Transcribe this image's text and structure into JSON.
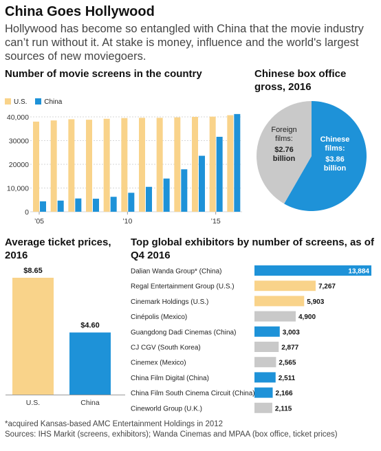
{
  "header": {
    "title": "China Goes Hollywood",
    "subtitle": "Hollywood has become so entangled with China that the movie industry can’t run without it. At stake is money, influence and the world's largest sources of new moviegoers."
  },
  "colors": {
    "us": "#F9D38A",
    "china": "#1E92D8",
    "gray": "#C9C9C9",
    "highlight_china": "#1E92D8"
  },
  "footnote": {
    "note": "*acquired Kansas-based AMC Entertainment Holdings in 2012",
    "sources": "Sources: IHS Markit (screens, exhibitors); Wanda Cinemas and MPAA (box office, ticket prices)"
  },
  "chart_data": [
    {
      "type": "bar",
      "title": "Number of movie screens in the country",
      "legend": [
        "U.S.",
        "China"
      ],
      "categories": [
        2005,
        2006,
        2007,
        2008,
        2009,
        2010,
        2011,
        2012,
        2013,
        2014,
        2015,
        2016
      ],
      "x_tick_labels": [
        "’05",
        "’10",
        "’15"
      ],
      "y_tick_labels": [
        "0",
        "10,000",
        "20000",
        "30000",
        "40,000"
      ],
      "ylim": [
        0,
        40000
      ],
      "series": [
        {
          "name": "U.S.",
          "values": [
            38000,
            38500,
            39000,
            38800,
            39200,
            39500,
            39600,
            39600,
            39800,
            40000,
            40100,
            40700
          ]
        },
        {
          "name": "China",
          "values": [
            4400,
            4700,
            5600,
            5500,
            6300,
            8000,
            10500,
            14000,
            17900,
            23600,
            31600,
            41200
          ]
        }
      ]
    },
    {
      "type": "pie",
      "title": "Chinese box office gross, 2016",
      "slices": [
        {
          "label": "Chinese films:",
          "value_label": "$3.86 billion",
          "value": 3.86
        },
        {
          "label": "Foreign films:",
          "value_label": "$2.76 billion",
          "value": 2.76
        }
      ]
    },
    {
      "type": "bar",
      "title": "Average ticket prices, 2016",
      "categories": [
        "U.S.",
        "China"
      ],
      "values": [
        8.65,
        4.6
      ],
      "value_labels": [
        "$8.65",
        "$4.60"
      ]
    },
    {
      "type": "bar",
      "orientation": "horizontal",
      "title": "Top global exhibitors by number of screens, as of Q4 2016",
      "categories": [
        "Dalian Wanda Group* (China)",
        "Regal Entertainment Group (U.S.)",
        "Cinemark Holdings (U.S.)",
        "Cinépolis (Mexico)",
        "Guangdong Dadi Cinemas (China)",
        "CJ CGV (South Korea)",
        "Cinemex (Mexico)",
        "China Film Digital (China)",
        "China Film South Cinema Circuit (China)",
        "Cineworld Group (U.K.)"
      ],
      "values": [
        13884,
        7267,
        5903,
        4900,
        3003,
        2877,
        2565,
        2511,
        2166,
        2115
      ],
      "value_labels": [
        "13,884",
        "7,267",
        "5,903",
        "4,900",
        "3,003",
        "2,877",
        "2,565",
        "2,511",
        "2,166",
        "2,115"
      ],
      "country_group": [
        "china",
        "us",
        "us",
        "other",
        "china",
        "other",
        "other",
        "china",
        "china",
        "other"
      ]
    }
  ]
}
